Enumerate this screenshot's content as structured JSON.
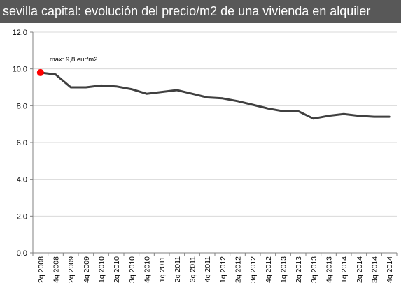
{
  "chart_data": {
    "type": "line",
    "title": "sevilla capital: evolución del precio/m2 de una vivienda en alquiler",
    "xlabel": "",
    "ylabel": "",
    "ylim": [
      0,
      12
    ],
    "yticks": [
      "0.0",
      "2.0",
      "4.0",
      "6.0",
      "8.0",
      "10.0",
      "12.0"
    ],
    "x_tick_labels": [
      "2q 2008",
      "4q 2008",
      "2q 2009",
      "4q 2009",
      "1q 2010",
      "2q 2010",
      "3q 2010",
      "4q 2010",
      "1q 2011",
      "2q 2011",
      "3q 2011",
      "4q 2011",
      "1q 2012",
      "2q 2012",
      "3q 2012",
      "4q 2012",
      "1q 2013",
      "2q 2013",
      "3q 2013",
      "4q 2013",
      "1q 2014",
      "2q 2014",
      "3q 2014",
      "4q 2014"
    ],
    "grid": true,
    "series": [
      {
        "values": [
          9.8,
          9.7,
          9.0,
          9.0,
          9.1,
          9.05,
          8.9,
          8.65,
          8.75,
          8.85,
          8.65,
          8.45,
          8.4,
          8.25,
          8.05,
          7.85,
          7.7,
          7.7,
          7.3,
          7.45,
          7.55,
          7.45,
          7.4,
          7.4
        ],
        "color": "#404040"
      }
    ],
    "highlight": {
      "index": 0,
      "color": "#ff0000",
      "label": "max: 9,8 eur/m2"
    },
    "colors": {
      "title_bg": "#585858",
      "grid": "#d9d9d9",
      "axis": "#808080"
    }
  }
}
